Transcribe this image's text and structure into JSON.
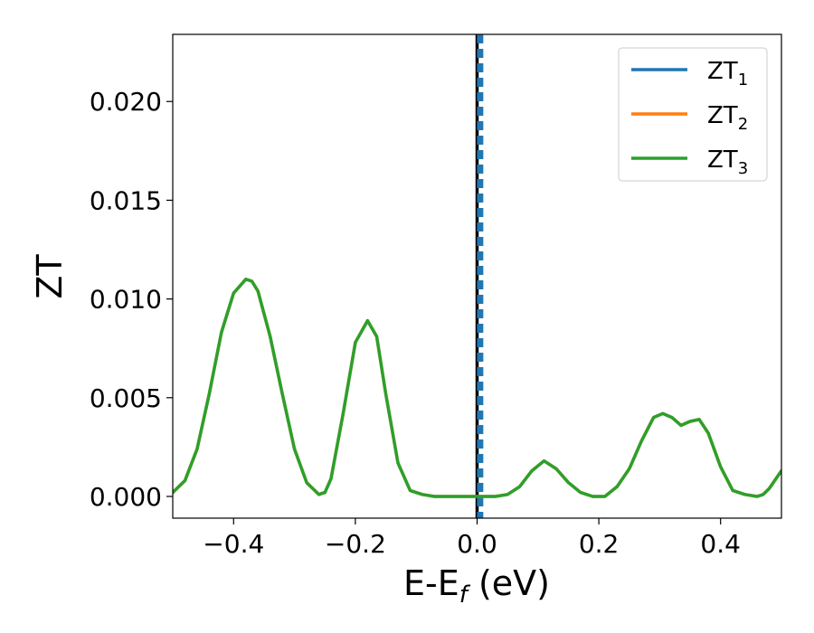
{
  "chart_data": {
    "type": "line",
    "xlabel_main": "E-E",
    "xlabel_sub": "f",
    "xlabel_units": " (eV)",
    "ylabel": "ZT",
    "xlim": [
      -0.5,
      0.5
    ],
    "ylim": [
      -0.0011,
      0.0234
    ],
    "xticks": [
      -0.4,
      -0.2,
      0.0,
      0.2,
      0.4
    ],
    "xtick_labels": [
      "−0.4",
      "−0.2",
      "0.0",
      "0.2",
      "0.4"
    ],
    "yticks": [
      0.0,
      0.005,
      0.01,
      0.015,
      0.02
    ],
    "ytick_labels": [
      "0.000",
      "0.005",
      "0.010",
      "0.015",
      "0.020"
    ],
    "grid": false,
    "legend_position": "top-right",
    "fermi_line_x": 0.0,
    "series": [
      {
        "name": "ZT",
        "sub": "1",
        "color": "#1f77b4",
        "vertical_at": 0.005,
        "dashed": true
      },
      {
        "name": "ZT",
        "sub": "2",
        "color": "#ff7f0e",
        "x": [
          -0.5,
          -0.48,
          -0.46,
          -0.44,
          -0.42,
          -0.4,
          -0.38,
          -0.37,
          -0.36,
          -0.34,
          -0.32,
          -0.3,
          -0.28,
          -0.26,
          -0.25,
          -0.24,
          -0.22,
          -0.2,
          -0.18,
          -0.165,
          -0.15,
          -0.13,
          -0.11,
          -0.09,
          -0.07,
          -0.05,
          -0.02,
          0.0,
          0.03,
          0.05,
          0.07,
          0.09,
          0.11,
          0.13,
          0.15,
          0.17,
          0.19,
          0.21,
          0.23,
          0.25,
          0.27,
          0.29,
          0.305,
          0.32,
          0.335,
          0.35,
          0.365,
          0.38,
          0.4,
          0.42,
          0.44,
          0.46,
          0.47,
          0.48,
          0.5
        ],
        "y": [
          0.0002,
          0.0008,
          0.0024,
          0.0052,
          0.0083,
          0.0103,
          0.011,
          0.0109,
          0.0104,
          0.0081,
          0.0052,
          0.0024,
          0.0007,
          0.0001,
          0.0002,
          0.0009,
          0.0042,
          0.0078,
          0.0089,
          0.0081,
          0.0052,
          0.0017,
          0.0003,
          0.0001,
          0.0,
          0.0,
          0.0,
          0.0,
          0.0,
          0.0001,
          0.0005,
          0.0013,
          0.0018,
          0.0014,
          0.0007,
          0.0002,
          0.0,
          0.0,
          0.0005,
          0.0014,
          0.0028,
          0.004,
          0.0042,
          0.004,
          0.0036,
          0.0038,
          0.0039,
          0.0032,
          0.0015,
          0.0003,
          0.0001,
          0.0,
          0.0001,
          0.0004,
          0.0013
        ]
      },
      {
        "name": "ZT",
        "sub": "3",
        "color": "#2ca02c",
        "x": [
          -0.5,
          -0.48,
          -0.46,
          -0.44,
          -0.42,
          -0.4,
          -0.38,
          -0.37,
          -0.36,
          -0.34,
          -0.32,
          -0.3,
          -0.28,
          -0.26,
          -0.25,
          -0.24,
          -0.22,
          -0.2,
          -0.18,
          -0.165,
          -0.15,
          -0.13,
          -0.11,
          -0.09,
          -0.07,
          -0.05,
          -0.02,
          0.0,
          0.03,
          0.05,
          0.07,
          0.09,
          0.11,
          0.13,
          0.15,
          0.17,
          0.19,
          0.21,
          0.23,
          0.25,
          0.27,
          0.29,
          0.305,
          0.32,
          0.335,
          0.35,
          0.365,
          0.38,
          0.4,
          0.42,
          0.44,
          0.46,
          0.47,
          0.48,
          0.5
        ],
        "y": [
          0.0002,
          0.0008,
          0.0024,
          0.0052,
          0.0083,
          0.0103,
          0.011,
          0.0109,
          0.0104,
          0.0081,
          0.0052,
          0.0024,
          0.0007,
          0.0001,
          0.0002,
          0.0009,
          0.0042,
          0.0078,
          0.0089,
          0.0081,
          0.0052,
          0.0017,
          0.0003,
          0.0001,
          0.0,
          0.0,
          0.0,
          0.0,
          0.0,
          0.0001,
          0.0005,
          0.0013,
          0.0018,
          0.0014,
          0.0007,
          0.0002,
          0.0,
          0.0,
          0.0005,
          0.0014,
          0.0028,
          0.004,
          0.0042,
          0.004,
          0.0036,
          0.0038,
          0.0039,
          0.0032,
          0.0015,
          0.0003,
          0.0001,
          0.0,
          0.0001,
          0.0004,
          0.0013
        ]
      }
    ]
  }
}
